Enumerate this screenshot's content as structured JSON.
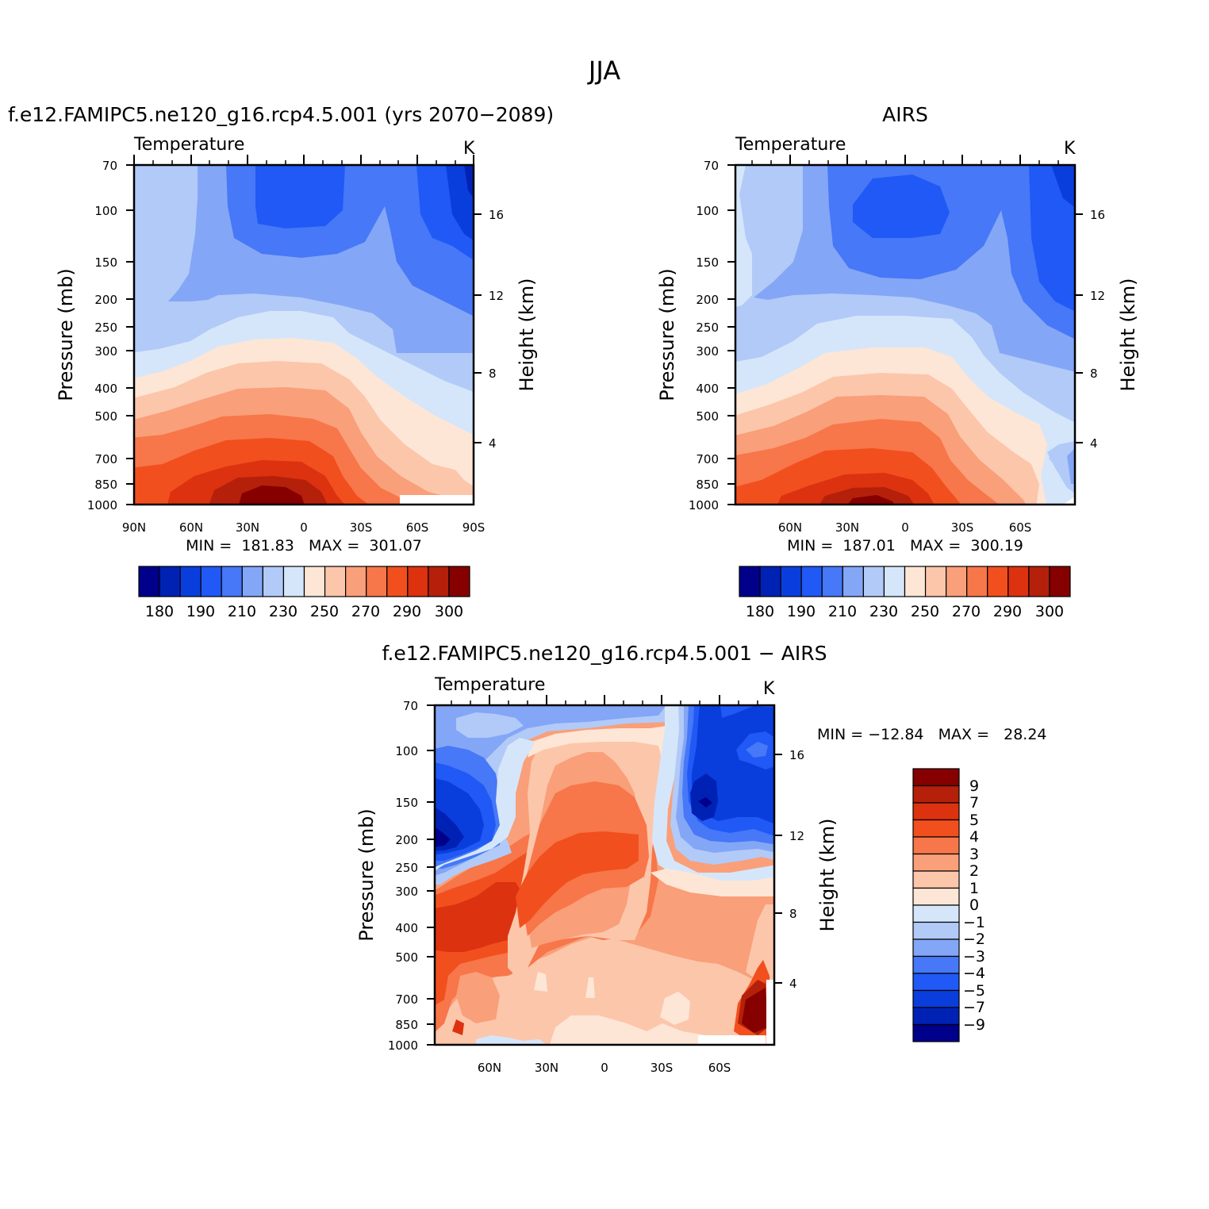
{
  "page_title": "JJA",
  "panels": [
    {
      "id": "model",
      "title": "f.e12.FAMIPC5.ne120_g16.rcp4.5.001 (yrs 2070−2089)",
      "variable": "Temperature",
      "units": "K",
      "ylabel": "Pressure (mb)",
      "y2label": "Height (km)",
      "stats": "MIN =  181.83   MAX =  301.07",
      "x_ticks": [
        "90N",
        "60N",
        "30N",
        "0",
        "30S",
        "60S",
        "90S"
      ]
    },
    {
      "id": "obs",
      "title": "AIRS",
      "variable": "Temperature",
      "units": "K",
      "ylabel": "Pressure (mb)",
      "y2label": "Height (km)",
      "stats": "MIN =  187.01   MAX =  300.19",
      "x_ticks": [
        "60N",
        "30N",
        "0",
        "30S",
        "60S"
      ]
    },
    {
      "id": "diff",
      "title": "f.e12.FAMIPC5.ne120_g16.rcp4.5.001 − AIRS",
      "variable": "Temperature",
      "units": "K",
      "ylabel": "Pressure (mb)",
      "y2label": "Height (km)",
      "stats": "MIN = −12.84   MAX =   28.24",
      "x_ticks": [
        "60N",
        "30N",
        "0",
        "30S",
        "60S"
      ]
    }
  ],
  "pressure_ticks": [
    "70",
    "100",
    "150",
    "200",
    "250",
    "300",
    "400",
    "500",
    "700",
    "850",
    "1000"
  ],
  "height_ticks": [
    "16",
    "12",
    "8",
    "4"
  ],
  "colorbar_abs": {
    "labels": [
      "180",
      "190",
      "210",
      "230",
      "250",
      "270",
      "290",
      "300"
    ],
    "colors": [
      "#00008a",
      "#0022b4",
      "#0a3edc",
      "#2059f5",
      "#4678f7",
      "#84a6f6",
      "#b2caf8",
      "#d6e6fa",
      "#fde6d6",
      "#fcc6ab",
      "#f99f79",
      "#f7764a",
      "#f24f1e",
      "#dc3210",
      "#b4200a",
      "#860000"
    ]
  },
  "colorbar_diff": {
    "labels": [
      "9",
      "7",
      "5",
      "4",
      "3",
      "2",
      "1",
      "0",
      "−1",
      "−2",
      "−3",
      "−4",
      "−5",
      "−7",
      "−9"
    ],
    "colors": [
      "#860000",
      "#b4200a",
      "#dc3210",
      "#f24f1e",
      "#f7764a",
      "#f99f79",
      "#fcc6ab",
      "#fde6d6",
      "#d6e6fa",
      "#b2caf8",
      "#84a6f6",
      "#4678f7",
      "#2059f5",
      "#0a3edc",
      "#0022b4",
      "#00008a"
    ]
  },
  "chart_data": [
    {
      "type": "heatmap",
      "title": "f.e12.FAMIPC5.ne120_g16.rcp4.5.001 (yrs 2070−2089)",
      "variable": "Temperature (K)",
      "x": [
        -90,
        -60,
        -30,
        0,
        30,
        60,
        90
      ],
      "x_labels": [
        "90N",
        "60N",
        "30N",
        "0",
        "30S",
        "60S",
        "90S"
      ],
      "y_pressure_mb": [
        70,
        100,
        150,
        200,
        250,
        300,
        400,
        500,
        700,
        850,
        1000
      ],
      "ylim": [
        1000,
        70
      ],
      "min": 181.83,
      "max": 301.07,
      "levels": [
        180,
        185,
        190,
        200,
        210,
        220,
        230,
        240,
        250,
        260,
        270,
        280,
        290,
        295,
        300
      ]
    },
    {
      "type": "heatmap",
      "title": "AIRS",
      "variable": "Temperature (K)",
      "x": [
        -60,
        -30,
        0,
        30,
        60
      ],
      "x_labels": [
        "60N",
        "30N",
        "0",
        "30S",
        "60S"
      ],
      "y_pressure_mb": [
        70,
        100,
        150,
        200,
        250,
        300,
        400,
        500,
        700,
        850,
        1000
      ],
      "ylim": [
        1000,
        70
      ],
      "min": 187.01,
      "max": 300.19,
      "levels": [
        180,
        185,
        190,
        200,
        210,
        220,
        230,
        240,
        250,
        260,
        270,
        280,
        290,
        295,
        300
      ]
    },
    {
      "type": "heatmap",
      "title": "f.e12.FAMIPC5.ne120_g16.rcp4.5.001 − AIRS",
      "variable": "Temperature difference (K)",
      "x": [
        -60,
        -30,
        0,
        30,
        60
      ],
      "x_labels": [
        "60N",
        "30N",
        "0",
        "30S",
        "60S"
      ],
      "y_pressure_mb": [
        70,
        100,
        150,
        200,
        250,
        300,
        400,
        500,
        700,
        850,
        1000
      ],
      "ylim": [
        1000,
        70
      ],
      "min": -12.84,
      "max": 28.24,
      "levels": [
        -9,
        -7,
        -5,
        -4,
        -3,
        -2,
        -1,
        0,
        1,
        2,
        3,
        4,
        5,
        7,
        9
      ]
    }
  ]
}
